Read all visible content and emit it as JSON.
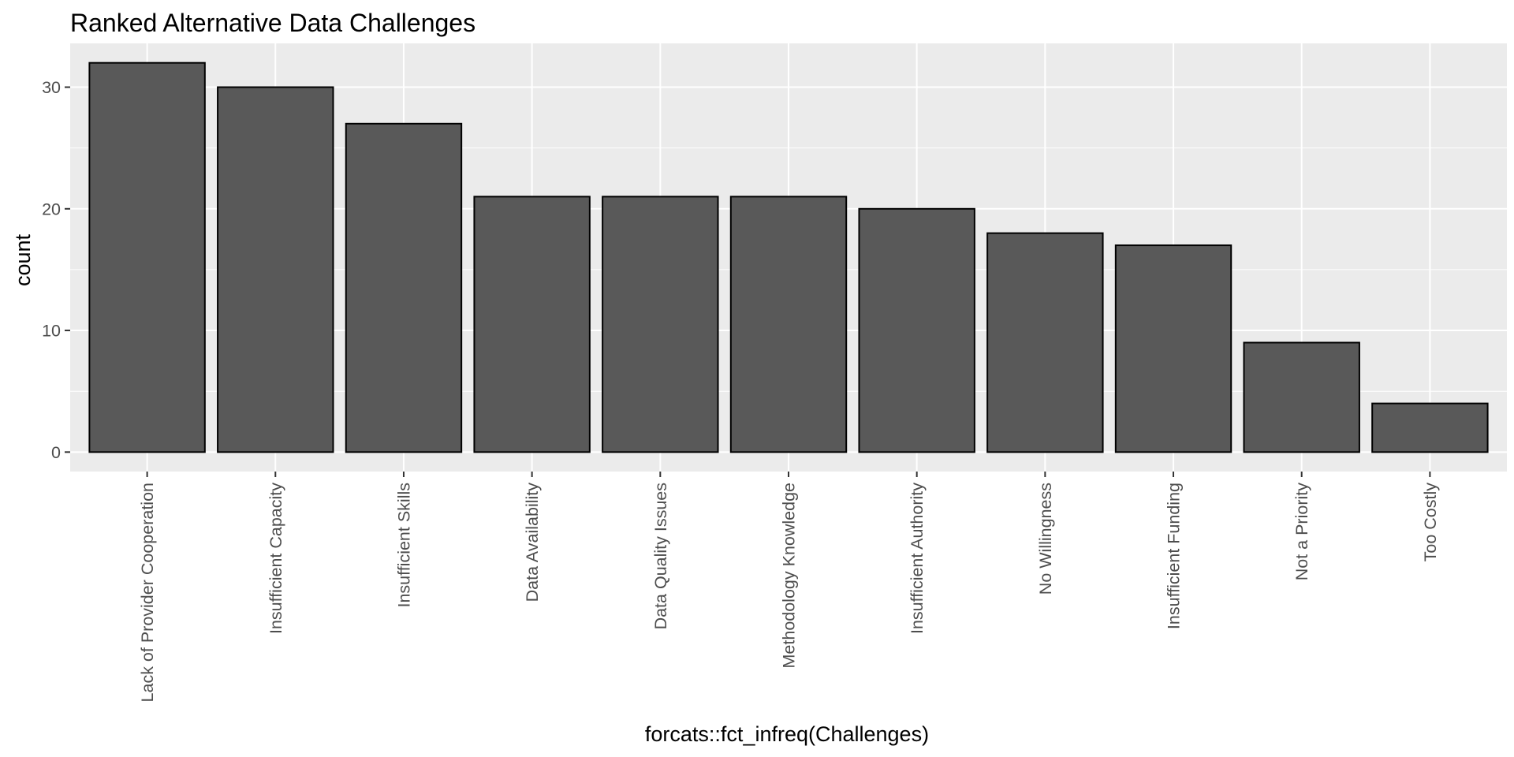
{
  "chart_data": {
    "type": "bar",
    "title": "Ranked Alternative Data Challenges",
    "xlabel": "forcats::fct_infreq(Challenges)",
    "ylabel": "count",
    "categories": [
      "Lack of Provider Cooperation",
      "Insufficient Capacity",
      "Insufficient Skills",
      "Data Availability",
      "Data Quality Issues",
      "Methodology Knowledge",
      "Insufficient Authority",
      "No Willingness",
      "Insufficient Funding",
      "Not a Priority",
      "Too Costly"
    ],
    "values": [
      32,
      30,
      27,
      21,
      21,
      21,
      20,
      18,
      17,
      9,
      4
    ],
    "ylim": [
      -1.6,
      33.6
    ],
    "yticks": [
      0,
      10,
      20,
      30
    ],
    "grid": true,
    "legend": "none",
    "colors": {
      "panel_background": "#ebebeb",
      "bar_fill": "#595959",
      "bar_outline": "#000000",
      "grid": "#ffffff",
      "tick_label": "#4d4d4d"
    }
  }
}
